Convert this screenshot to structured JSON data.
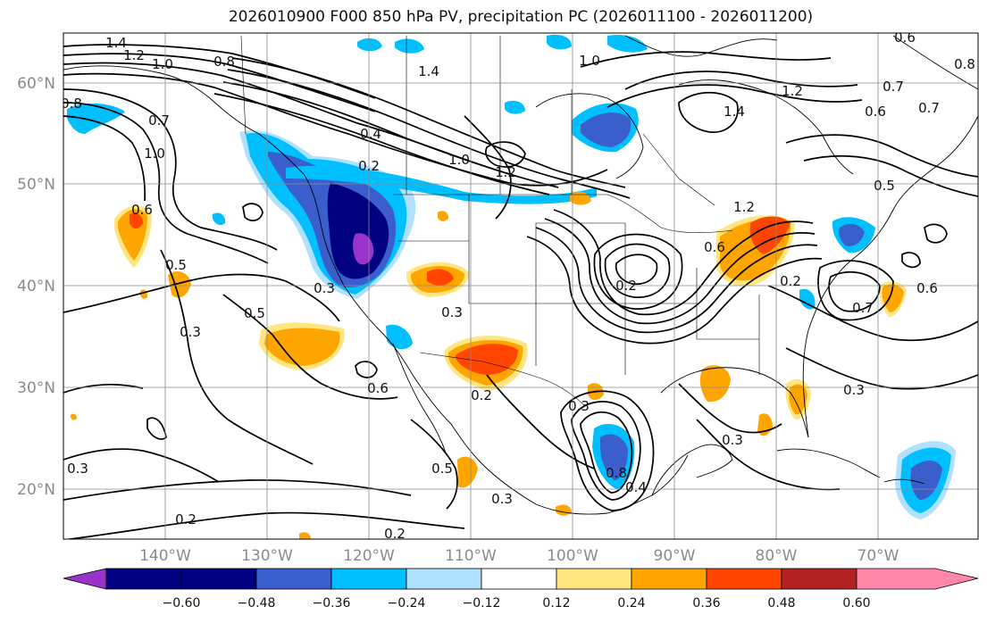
{
  "title": "2026010900 F000 850 hPa PV, precipitation PC (2026011100 - 2026011200)",
  "map": {
    "lat_labels": [
      "60°N",
      "50°N",
      "40°N",
      "30°N",
      "20°N"
    ],
    "lon_labels": [
      "140°W",
      "130°W",
      "120°W",
      "110°W",
      "100°W",
      "90°W",
      "80°W",
      "70°W"
    ],
    "contour_labels": [
      {
        "text": "1.4",
        "lon": -145.2,
        "lat": 63.9
      },
      {
        "text": "1.2",
        "lon": -144.2,
        "lat": 62.5
      },
      {
        "text": "1.0",
        "lon": -141.5,
        "lat": 61.6
      },
      {
        "text": "0.8",
        "lon": -135.5,
        "lat": 61.8
      },
      {
        "text": "1.4",
        "lon": -114.2,
        "lat": 60.9
      },
      {
        "text": "1.0",
        "lon": -98.4,
        "lat": 62.0
      },
      {
        "text": "0.6",
        "lon": -77.0,
        "lat": 63.5
      },
      {
        "text": "0.8",
        "lon": -71.5,
        "lat": 62.0
      },
      {
        "text": "0.8",
        "lon": -148.6,
        "lat": 57.8
      },
      {
        "text": "0.7",
        "lon": -139.6,
        "lat": 56.0
      },
      {
        "text": "1.0",
        "lon": -140.2,
        "lat": 52.0
      },
      {
        "text": "0.4",
        "lon": -116.8,
        "lat": 55.0
      },
      {
        "text": "0.2",
        "lon": -117.9,
        "lat": 51.8
      },
      {
        "text": "1.0",
        "lon": -108.0,
        "lat": 52.0
      },
      {
        "text": "1.2",
        "lon": -105.0,
        "lat": 50.2
      },
      {
        "text": "1.2",
        "lon": -78.8,
        "lat": 58.6
      },
      {
        "text": "1.4",
        "lon": -84.2,
        "lat": 56.6
      },
      {
        "text": "0.7",
        "lon": -73.8,
        "lat": 58.2
      },
      {
        "text": "0.6",
        "lon": -71.6,
        "lat": 56.8
      },
      {
        "text": "0.7",
        "lon": -66.1,
        "lat": 57.2
      },
      {
        "text": "0.5",
        "lon": -71.2,
        "lat": 49.6
      },
      {
        "text": "1.2",
        "lon": -83.2,
        "lat": 46.8
      },
      {
        "text": "0.6",
        "lon": -85.8,
        "lat": 43.6
      },
      {
        "text": "0.6",
        "lon": -142.1,
        "lat": 46.9
      },
      {
        "text": "0.5",
        "lon": -137.8,
        "lat": 41.9
      },
      {
        "text": "0.5",
        "lon": -126.3,
        "lat": 37.1
      },
      {
        "text": "0.3",
        "lon": -137.0,
        "lat": 35.6
      },
      {
        "text": "0.3",
        "lon": -120.9,
        "lat": 39.8
      },
      {
        "text": "0.3",
        "lon": -109.3,
        "lat": 37.4
      },
      {
        "text": "0.6",
        "lon": -122.4,
        "lat": 30.7
      },
      {
        "text": "0.2",
        "lon": -106.4,
        "lat": 29.4
      },
      {
        "text": "0.2",
        "lon": -97.3,
        "lat": 40.0
      },
      {
        "text": "0.2",
        "lon": -82.3,
        "lat": 40.4
      },
      {
        "text": "0.7",
        "lon": -73.8,
        "lat": 38.8
      },
      {
        "text": "0.6",
        "lon": -65.2,
        "lat": 39.8
      },
      {
        "text": "0.3",
        "lon": -98.3,
        "lat": 28.1
      },
      {
        "text": "0.3",
        "lon": -74.2,
        "lat": 29.7
      },
      {
        "text": "0.3",
        "lon": -84.3,
        "lat": 25.3
      },
      {
        "text": "0.5",
        "lon": -116.5,
        "lat": 22.0
      },
      {
        "text": "0.3",
        "lon": -107.9,
        "lat": 17.9
      },
      {
        "text": "0.8",
        "lon": -96.6,
        "lat": 21.8
      },
      {
        "text": "0.4",
        "lon": -95.3,
        "lat": 19.5
      },
      {
        "text": "0.3",
        "lon": -150.0,
        "lat": 21.5
      },
      {
        "text": "0.2",
        "lon": -138.2,
        "lat": 15.8
      },
      {
        "text": "0.2",
        "lon": -121.8,
        "lat": 14.8
      }
    ]
  },
  "colorbar": {
    "colors": [
      "#9a33cc",
      "#000080",
      "#3a5fcd",
      "#00bfff",
      "#b0e2ff",
      "#ffffff",
      "#ffe680",
      "#ffa500",
      "#ff4500",
      "#b22222",
      "#ff88aa"
    ],
    "ticks": [
      "−0.60",
      "−0.48",
      "−0.36",
      "−0.24",
      "−0.12",
      "0.12",
      "0.24",
      "0.36",
      "0.48",
      "0.60"
    ]
  }
}
